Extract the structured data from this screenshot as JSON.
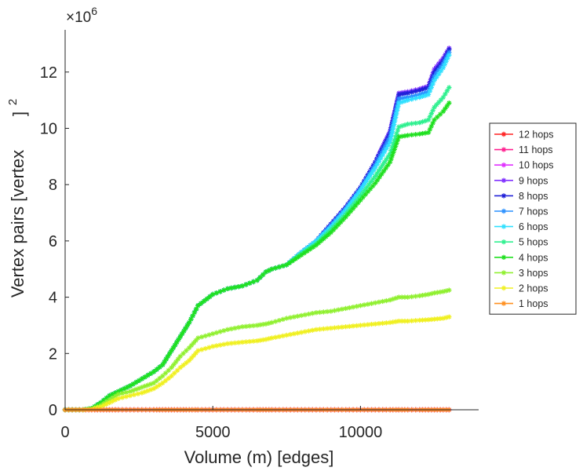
{
  "chart_data": {
    "type": "line",
    "title": "",
    "xlabel": "Volume (m) [edges]",
    "ylabel": "Vertex pairs [vertex",
    "ylabel_superscript": "2",
    "ylabel_close": "]",
    "y_exponent_label": "×10",
    "y_exponent_power": "6",
    "xlim": [
      0,
      14000
    ],
    "ylim": [
      0,
      13.5
    ],
    "x_ticks": [
      0,
      5000,
      10000
    ],
    "x_tick_labels": [
      "0",
      "5000",
      "10000"
    ],
    "y_ticks": [
      0,
      2,
      4,
      6,
      8,
      10,
      12
    ],
    "y_tick_labels": [
      "0",
      "2",
      "4",
      "6",
      "8",
      "10",
      "12"
    ],
    "legend_position": "right",
    "x": [
      0,
      600,
      900,
      1200,
      1500,
      1800,
      2200,
      2600,
      3000,
      3300,
      3600,
      3900,
      4200,
      4500,
      5000,
      5500,
      6000,
      6500,
      6800,
      7000,
      7500,
      8000,
      8500,
      9000,
      9500,
      10000,
      10500,
      11000,
      11300,
      11600,
      12000,
      12300,
      12500,
      12800,
      13000
    ],
    "series": [
      {
        "name": "12 hops",
        "color": "#ff2020",
        "values": [
          0,
          0,
          0,
          0,
          0,
          0,
          0,
          0,
          0,
          0,
          0,
          0,
          0,
          0,
          0,
          0,
          0,
          0,
          0,
          0,
          0,
          0,
          0,
          0,
          0,
          0,
          0,
          0,
          0,
          0,
          0,
          0,
          0,
          0,
          0
        ]
      },
      {
        "name": "11 hops",
        "color": "#ff2090",
        "values": [
          0,
          0,
          0,
          0,
          0,
          0,
          0,
          0,
          0,
          0,
          0,
          0,
          0,
          0,
          0,
          0,
          0,
          0,
          0,
          0,
          0,
          0,
          0,
          0,
          0,
          0,
          0,
          0,
          0,
          0,
          0,
          0,
          0,
          0,
          0
        ]
      },
      {
        "name": "10 hops",
        "color": "#e030ff",
        "values": [
          0,
          0,
          0,
          0,
          0,
          0,
          0,
          0,
          0,
          0,
          0,
          0,
          0,
          0,
          0,
          0,
          0,
          0,
          0,
          0,
          0,
          0,
          0,
          0,
          0,
          0,
          0,
          0,
          0,
          0,
          0,
          0,
          0,
          0,
          0
        ]
      },
      {
        "name": "9 hops",
        "color": "#8030ff",
        "values": [
          0,
          0,
          0.05,
          0.25,
          0.5,
          0.65,
          0.85,
          1.1,
          1.35,
          1.6,
          2.1,
          2.6,
          3.1,
          3.7,
          4.1,
          4.3,
          4.4,
          4.6,
          4.9,
          5.0,
          5.15,
          5.6,
          6.0,
          6.6,
          7.2,
          7.9,
          8.8,
          9.9,
          11.25,
          11.3,
          11.4,
          11.5,
          12.1,
          12.5,
          12.85
        ]
      },
      {
        "name": "8 hops",
        "color": "#2020d8",
        "values": [
          0,
          0,
          0.05,
          0.25,
          0.5,
          0.65,
          0.85,
          1.1,
          1.35,
          1.6,
          2.1,
          2.6,
          3.1,
          3.7,
          4.1,
          4.3,
          4.4,
          4.6,
          4.9,
          5.0,
          5.15,
          5.6,
          6.0,
          6.6,
          7.2,
          7.9,
          8.8,
          9.85,
          11.2,
          11.25,
          11.35,
          11.45,
          12.0,
          12.4,
          12.8
        ]
      },
      {
        "name": "7 hops",
        "color": "#2a90ff",
        "values": [
          0,
          0,
          0.05,
          0.25,
          0.5,
          0.65,
          0.85,
          1.1,
          1.35,
          1.6,
          2.1,
          2.6,
          3.1,
          3.7,
          4.1,
          4.3,
          4.4,
          4.6,
          4.9,
          5.0,
          5.15,
          5.6,
          6.0,
          6.55,
          7.15,
          7.85,
          8.7,
          9.7,
          11.05,
          11.1,
          11.2,
          11.3,
          11.85,
          12.3,
          12.7
        ]
      },
      {
        "name": "6 hops",
        "color": "#30e0ff",
        "values": [
          0,
          0,
          0.05,
          0.25,
          0.5,
          0.65,
          0.85,
          1.1,
          1.35,
          1.6,
          2.1,
          2.6,
          3.1,
          3.7,
          4.1,
          4.3,
          4.4,
          4.6,
          4.9,
          5.0,
          5.15,
          5.6,
          6.0,
          6.5,
          7.1,
          7.8,
          8.6,
          9.5,
          10.9,
          11.0,
          11.1,
          11.2,
          11.7,
          12.15,
          12.6
        ]
      },
      {
        "name": "5 hops",
        "color": "#30f090",
        "values": [
          0,
          0,
          0.05,
          0.25,
          0.5,
          0.65,
          0.85,
          1.1,
          1.35,
          1.6,
          2.1,
          2.6,
          3.1,
          3.7,
          4.1,
          4.3,
          4.4,
          4.6,
          4.9,
          5.0,
          5.15,
          5.55,
          5.9,
          6.4,
          6.95,
          7.6,
          8.3,
          9.1,
          10.05,
          10.15,
          10.2,
          10.3,
          10.75,
          11.1,
          11.45
        ]
      },
      {
        "name": "4 hops",
        "color": "#20e020",
        "values": [
          0,
          0,
          0.05,
          0.25,
          0.5,
          0.65,
          0.85,
          1.1,
          1.35,
          1.6,
          2.1,
          2.6,
          3.1,
          3.7,
          4.1,
          4.3,
          4.4,
          4.6,
          4.9,
          5.0,
          5.15,
          5.5,
          5.85,
          6.3,
          6.85,
          7.45,
          8.05,
          8.8,
          9.7,
          9.75,
          9.8,
          9.85,
          10.3,
          10.6,
          10.9
        ]
      },
      {
        "name": "3 hops",
        "color": "#90f030",
        "values": [
          0,
          0,
          0.03,
          0.15,
          0.35,
          0.55,
          0.65,
          0.8,
          0.95,
          1.2,
          1.5,
          1.9,
          2.2,
          2.55,
          2.7,
          2.85,
          2.95,
          3.0,
          3.05,
          3.1,
          3.25,
          3.35,
          3.45,
          3.5,
          3.6,
          3.7,
          3.8,
          3.9,
          4.0,
          4.0,
          4.05,
          4.1,
          4.15,
          4.2,
          4.25
        ]
      },
      {
        "name": "2 hops",
        "color": "#f0f020",
        "values": [
          0,
          0,
          0.02,
          0.1,
          0.25,
          0.4,
          0.5,
          0.6,
          0.75,
          0.95,
          1.2,
          1.5,
          1.75,
          2.1,
          2.25,
          2.35,
          2.4,
          2.45,
          2.5,
          2.55,
          2.65,
          2.75,
          2.85,
          2.9,
          2.95,
          3.0,
          3.05,
          3.1,
          3.15,
          3.15,
          3.18,
          3.2,
          3.22,
          3.25,
          3.3
        ]
      },
      {
        "name": "1 hops",
        "color": "#ff9020",
        "values": [
          0,
          0,
          0,
          0,
          0,
          0,
          0,
          0,
          0,
          0,
          0,
          0,
          0,
          0,
          0,
          0,
          0,
          0,
          0,
          0,
          0,
          0,
          0,
          0,
          0,
          0,
          0,
          0,
          0,
          0,
          0,
          0,
          0,
          0,
          0
        ]
      }
    ]
  }
}
